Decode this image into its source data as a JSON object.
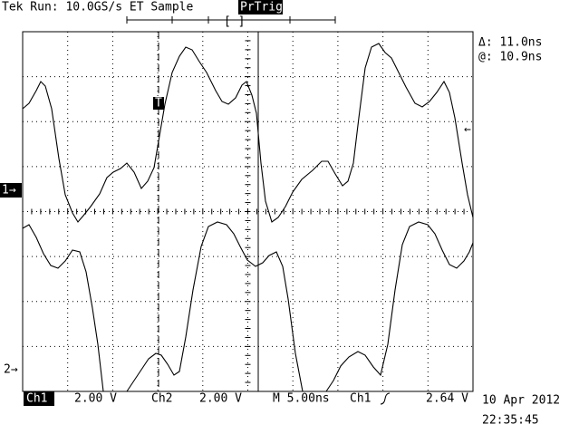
{
  "header": {
    "status": "Tek Run: 10.0GS/s ET Sample",
    "trigger_status": "PrTrig"
  },
  "readout": {
    "delta": "Δ: 11.0ns",
    "at": "@: 10.9ns"
  },
  "markers": {
    "ch1": "1→",
    "ch2": "2→",
    "trigger": "T"
  },
  "footer": {
    "ch1_label": "Ch1",
    "ch1_scale": "2.00 V",
    "ch2_label": "Ch2",
    "ch2_scale": "2.00 V",
    "timebase": "M 5.00ns",
    "trigger_source": "Ch1",
    "trigger_level": "2.64 V",
    "date": "10 Apr 2012",
    "time": "22:35:45"
  }
}
